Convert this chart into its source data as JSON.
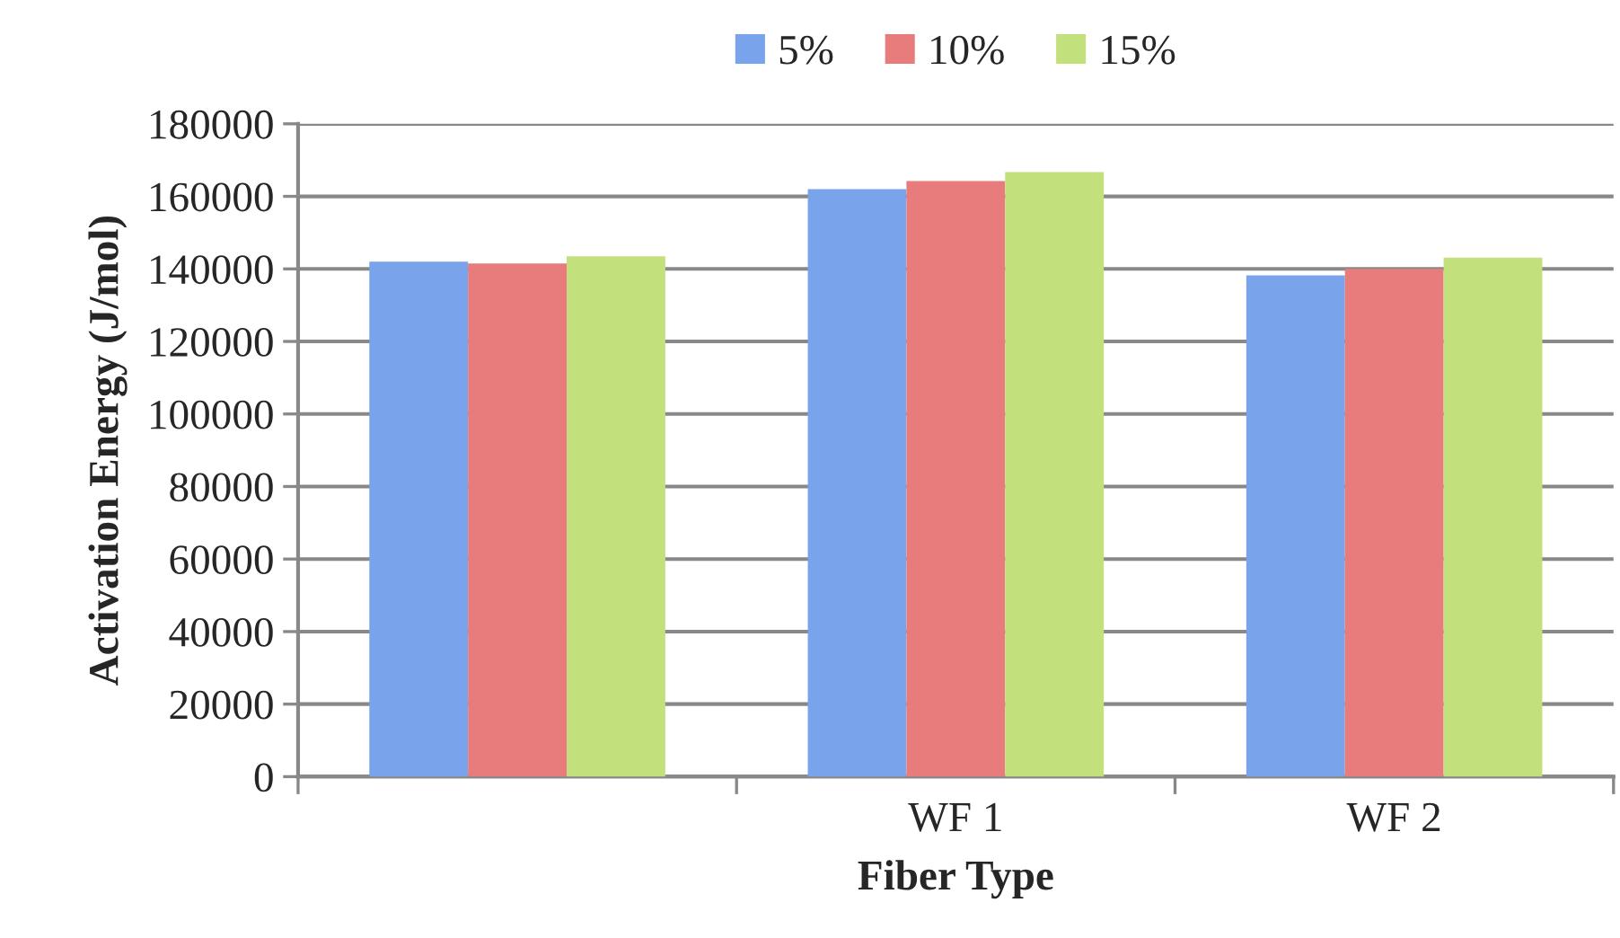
{
  "chart_data": {
    "type": "bar",
    "xlabel": "Fiber Type",
    "ylabel": "Activation Energy (J/mol)",
    "categories": [
      null,
      "WF 1",
      "WF 2"
    ],
    "series": [
      {
        "name": "5%",
        "color": "#79a3ea",
        "values": [
          142000,
          162000,
          138200
        ]
      },
      {
        "name": "10%",
        "color": "#e87c7c",
        "values": [
          141500,
          164200,
          140000
        ]
      },
      {
        "name": "15%",
        "color": "#c2e07c",
        "values": [
          143500,
          166700,
          143100
        ]
      }
    ],
    "ylim": [
      0,
      180000
    ],
    "yticks": [
      0,
      20000,
      40000,
      60000,
      80000,
      100000,
      120000,
      140000,
      160000,
      180000
    ],
    "grid": "y",
    "legend": "top"
  }
}
